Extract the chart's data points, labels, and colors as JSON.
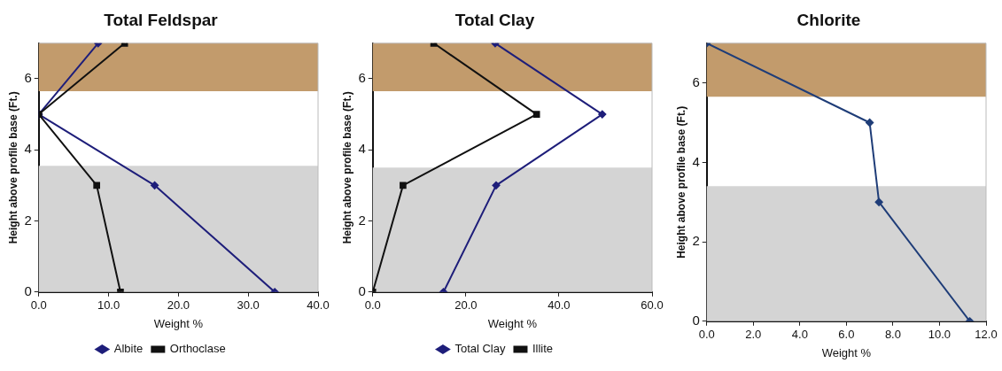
{
  "chart_data": [
    {
      "type": "line",
      "title": "Total Feldspar",
      "xlabel": "Weight %",
      "ylabel": "Height above profile base (Ft.)",
      "xlim": [
        0,
        40
      ],
      "xticks": [
        {
          "value": 0,
          "label": "0.0"
        },
        {
          "value": 10,
          "label": "10.0"
        },
        {
          "value": 20,
          "label": "20.0"
        },
        {
          "value": 30,
          "label": "30.0"
        },
        {
          "value": 40,
          "label": "40.0"
        }
      ],
      "ylim": [
        0,
        7
      ],
      "yticks": [
        0,
        2,
        4,
        6
      ],
      "grid": false,
      "legend": "bottom",
      "bands": [
        {
          "axis": "y",
          "from": 0,
          "to": 3.55,
          "color": "#d4d4d4"
        },
        {
          "axis": "y",
          "from": 5.65,
          "to": 7,
          "color": "#c29b6c"
        }
      ],
      "series": [
        {
          "name": "Albite",
          "color": "#1e1e7a",
          "marker": "diamond",
          "x": [
            33.8,
            16.6,
            0,
            8.5
          ],
          "values": [
            0,
            3,
            5,
            7
          ]
        },
        {
          "name": "Orthoclase",
          "color": "#111111",
          "marker": "square",
          "x": [
            11.7,
            8.3,
            0,
            12.3
          ],
          "values": [
            0,
            3,
            5,
            7
          ]
        }
      ]
    },
    {
      "type": "line",
      "title": "Total Clay",
      "xlabel": "Weight %",
      "ylabel": "Height above profile base (Ft.)",
      "xlim": [
        0,
        60
      ],
      "xticks": [
        {
          "value": 0,
          "label": "0.0"
        },
        {
          "value": 20,
          "label": "20.0"
        },
        {
          "value": 40,
          "label": "40.0"
        },
        {
          "value": 60,
          "label": "60.0"
        }
      ],
      "ylim": [
        0,
        7
      ],
      "yticks": [
        0,
        2,
        4,
        6
      ],
      "grid": false,
      "legend": "bottom",
      "bands": [
        {
          "axis": "y",
          "from": 0,
          "to": 3.5,
          "color": "#d4d4d4"
        },
        {
          "axis": "y",
          "from": 5.65,
          "to": 7,
          "color": "#c29b6c"
        }
      ],
      "series": [
        {
          "name": "Total Clay",
          "color": "#1e1e7a",
          "marker": "diamond",
          "x": [
            15.2,
            26.5,
            49.3,
            26.3
          ],
          "values": [
            0,
            3,
            5,
            7
          ]
        },
        {
          "name": "Illite",
          "color": "#111111",
          "marker": "square",
          "x": [
            0,
            6.5,
            35.2,
            13.1
          ],
          "values": [
            0,
            3,
            5,
            7
          ]
        }
      ]
    },
    {
      "type": "line",
      "title": "Chlorite",
      "xlabel": "Weight %",
      "ylabel": "Height above profile base (Ft.)",
      "xlim": [
        0,
        12
      ],
      "xticks": [
        {
          "value": 0,
          "label": "0.0"
        },
        {
          "value": 2,
          "label": "2.0"
        },
        {
          "value": 4,
          "label": "4.0"
        },
        {
          "value": 6,
          "label": "6.0"
        },
        {
          "value": 8,
          "label": "8.0"
        },
        {
          "value": 10,
          "label": "10.0"
        },
        {
          "value": 12,
          "label": "12.0"
        }
      ],
      "ylim": [
        0,
        7
      ],
      "yticks": [
        0,
        2,
        4,
        6
      ],
      "grid": false,
      "legend": false,
      "bands": [
        {
          "axis": "y",
          "from": 0,
          "to": 3.4,
          "color": "#d4d4d4"
        },
        {
          "axis": "y",
          "from": 5.65,
          "to": 7,
          "color": "#c29b6c"
        }
      ],
      "series": [
        {
          "color": "#1f3d78",
          "marker": "diamond",
          "x": [
            11.3,
            7.4,
            7.0,
            0.0
          ],
          "values": [
            0,
            3,
            5,
            7
          ]
        }
      ]
    }
  ]
}
